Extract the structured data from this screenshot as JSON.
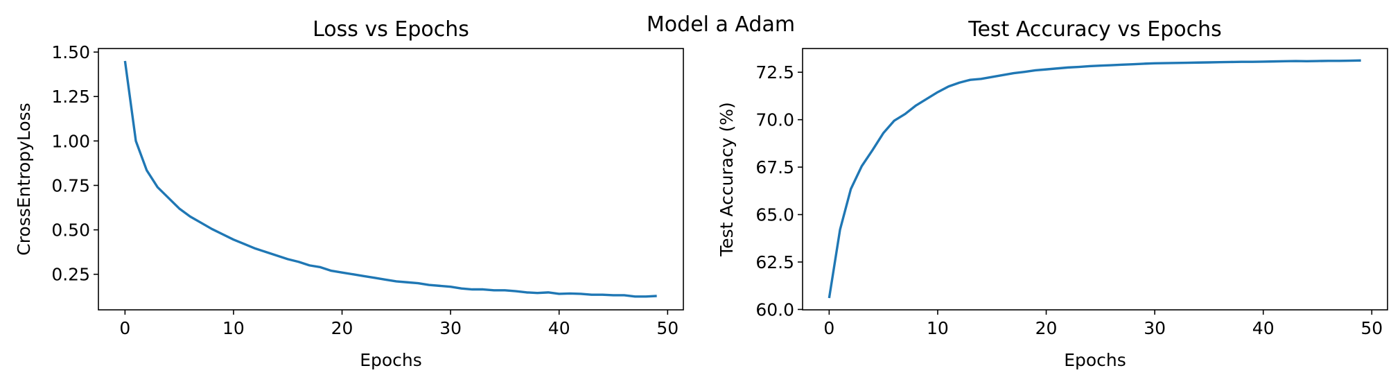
{
  "figure": {
    "suptitle": "Model a Adam"
  },
  "style": {
    "line_color": "#1f77b4"
  },
  "chart_data": [
    {
      "type": "line",
      "title": "Loss vs Epochs",
      "xlabel": "Epochs",
      "ylabel": "CrossEntropyLoss",
      "xlim": [
        -2.45,
        51.45
      ],
      "ylim": [
        0.05,
        1.52
      ],
      "xticks": [
        0,
        10,
        20,
        30,
        40,
        50
      ],
      "xtick_labels": [
        "0",
        "10",
        "20",
        "30",
        "40",
        "50"
      ],
      "yticks": [
        0.25,
        0.5,
        0.75,
        1.0,
        1.25,
        1.5
      ],
      "ytick_labels": [
        "0.25",
        "0.50",
        "0.75",
        "1.00",
        "1.25",
        "1.50"
      ],
      "grid": false,
      "series": [
        {
          "x": [
            0,
            1,
            2,
            3,
            4,
            5,
            6,
            7,
            8,
            9,
            10,
            11,
            12,
            13,
            14,
            15,
            16,
            17,
            18,
            19,
            20,
            21,
            22,
            23,
            24,
            25,
            26,
            27,
            28,
            29,
            30,
            31,
            32,
            33,
            34,
            35,
            36,
            37,
            38,
            39,
            40,
            41,
            42,
            43,
            44,
            45,
            46,
            47,
            48,
            49
          ],
          "values": [
            1.45,
            1.0,
            0.835,
            0.74,
            0.68,
            0.62,
            0.575,
            0.54,
            0.505,
            0.475,
            0.445,
            0.42,
            0.395,
            0.375,
            0.355,
            0.335,
            0.32,
            0.3,
            0.29,
            0.27,
            0.26,
            0.25,
            0.24,
            0.23,
            0.22,
            0.21,
            0.205,
            0.2,
            0.19,
            0.185,
            0.18,
            0.17,
            0.165,
            0.165,
            0.16,
            0.16,
            0.155,
            0.148,
            0.145,
            0.148,
            0.14,
            0.142,
            0.14,
            0.135,
            0.135,
            0.132,
            0.132,
            0.125,
            0.125,
            0.128
          ]
        }
      ]
    },
    {
      "type": "line",
      "title": "Test Accuracy vs Epochs",
      "xlabel": "Epochs",
      "ylabel": "Test Accuracy (%)",
      "xlim": [
        -2.45,
        51.45
      ],
      "ylim": [
        59.98,
        73.75
      ],
      "xticks": [
        0,
        10,
        20,
        30,
        40,
        50
      ],
      "xtick_labels": [
        "0",
        "10",
        "20",
        "30",
        "40",
        "50"
      ],
      "yticks": [
        60.0,
        62.5,
        65.0,
        67.5,
        70.0,
        72.5
      ],
      "ytick_labels": [
        "60.0",
        "62.5",
        "65.0",
        "67.5",
        "70.0",
        "72.5"
      ],
      "grid": false,
      "series": [
        {
          "x": [
            0,
            1,
            2,
            3,
            4,
            5,
            6,
            7,
            8,
            9,
            10,
            11,
            12,
            13,
            14,
            15,
            16,
            17,
            18,
            19,
            20,
            21,
            22,
            23,
            24,
            25,
            26,
            27,
            28,
            29,
            30,
            31,
            32,
            33,
            34,
            35,
            36,
            37,
            38,
            39,
            40,
            41,
            42,
            43,
            44,
            45,
            46,
            47,
            48,
            49
          ],
          "values": [
            60.6,
            64.2,
            66.35,
            67.55,
            68.4,
            69.3,
            69.95,
            70.3,
            70.75,
            71.1,
            71.45,
            71.75,
            71.95,
            72.1,
            72.15,
            72.25,
            72.35,
            72.45,
            72.52,
            72.6,
            72.65,
            72.7,
            72.75,
            72.78,
            72.82,
            72.85,
            72.87,
            72.9,
            72.92,
            72.95,
            72.97,
            72.98,
            72.99,
            73.0,
            73.01,
            73.02,
            73.03,
            73.04,
            73.05,
            73.05,
            73.06,
            73.07,
            73.08,
            73.09,
            73.08,
            73.09,
            73.1,
            73.1,
            73.11,
            73.12
          ]
        }
      ]
    }
  ]
}
